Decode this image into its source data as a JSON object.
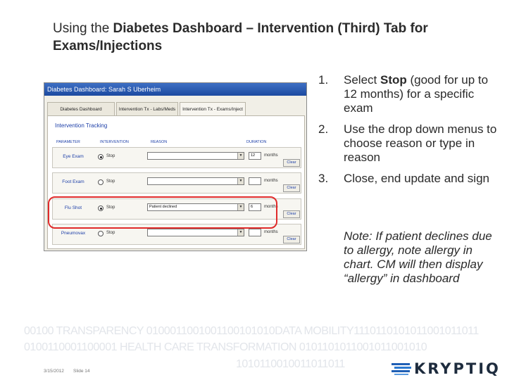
{
  "slide": {
    "title_prefix": "Using the ",
    "title_bold": "Diabetes Dashboard – Intervention (Third) Tab for Exams/Injections"
  },
  "window": {
    "title": "Diabetes Dashboard:  Sarah S Uberheim",
    "tabs": [
      "Diabetes Dashboard",
      "Intervention Tx - Labs/Meds",
      "Intervention Tx - Exams/Inject"
    ],
    "active_tab": 2,
    "section_title": "Intervention Tracking",
    "headers": {
      "parameter": "PARAMETER",
      "intervention": "INTERVENTION",
      "reason": "REASON",
      "duration": "DURATION"
    },
    "rows": [
      {
        "param": "Eye Exam",
        "stop": "Stop",
        "reason": "",
        "duration": "12",
        "months": "months",
        "clear": "Clear",
        "selected": true
      },
      {
        "param": "Foot Exam",
        "stop": "Stop",
        "reason": "",
        "duration": "",
        "months": "months",
        "clear": "Clear",
        "selected": false
      },
      {
        "param": "Flu Shot",
        "stop": "Stop",
        "reason": "Patient declined",
        "duration": "6",
        "months": "months",
        "clear": "Clear",
        "selected": true
      },
      {
        "param": "Pneumovax",
        "stop": "Stop",
        "reason": "",
        "duration": "",
        "months": "months",
        "clear": "Clear",
        "selected": false
      }
    ]
  },
  "instructions": {
    "step1_num": "1.",
    "step1_prefix": "Select ",
    "step1_bold": "Stop",
    "step1_suffix": " (good for up to 12 months) for a specific exam",
    "step2_num": "2.",
    "step2_text": "Use the drop down menus to choose reason or type in reason",
    "step3_num": "3.",
    "step3_text": "Close, end update and sign",
    "note": "Note: If patient declines due to allergy, note allergy in chart. CM will then display “allergy” in dashboard"
  },
  "background_text": {
    "line1": "00100 TRANSPARENCY 0100011001001100101010DATA MOBILITY1110110101011001011011",
    "line2": "0100110001100001 HEALTH CARE TRANSFORMATION 0101101011001011001010",
    "line3": "1010110010011011011"
  },
  "footer": {
    "date": "3/15/2012",
    "slide": "Slide 14",
    "logo": "KRYPTIQ"
  },
  "colors": {
    "highlight": "#e02b2b",
    "window_title_bar": "#1c4aa0",
    "label_blue": "#1d3fa8"
  }
}
